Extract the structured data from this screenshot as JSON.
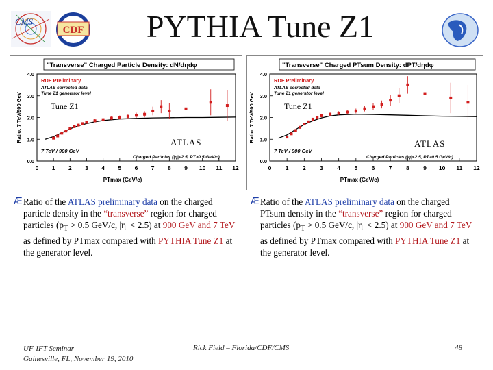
{
  "header": {
    "title": "PYTHIA Tune Z1",
    "logos": [
      "cms-logo",
      "cdf-logo",
      "florida-logo"
    ],
    "cms_text": "CMS",
    "cdf_text": "CDF"
  },
  "plots": [
    {
      "frame_title": "\"Transverse\" Charged Particle Density: dN/dηdφ",
      "tune_label": "Tune Z1",
      "atlas_label": "ATLAS",
      "legend_lines": [
        "RDF Preliminary",
        "ATLAS corrected data",
        "Tune Z1 generator level"
      ],
      "energy_label": "7 TeV / 900 GeV",
      "cut_label": "Charged Particles (|η|<2.5, PT>0.5 GeV/c)",
      "xlabel": "PTmax (GeV/c)",
      "ylabel": "Ratio: 7 TeV/900 GeV"
    },
    {
      "frame_title": "\"Transverse\" Charged PTsum Density: dPT/dηdφ",
      "tune_label": "Tune Z1",
      "atlas_label": "ATLAS",
      "legend_lines": [
        "RDF Preliminary",
        "ATLAS corrected data",
        "Tune Z1 generator level"
      ],
      "energy_label": "7 TeV / 900 GeV",
      "cut_label": "Charged Particles (|η|<2.5, PT>0.5 GeV/c)",
      "xlabel": "PTmax (GeV/c)",
      "ylabel": "Ratio: 7 TeV/900 GeV"
    }
  ],
  "chart_data": [
    {
      "type": "scatter",
      "title": "\"Transverse\" Charged Particle Density: dN/dηdφ",
      "xlabel": "PTmax (GeV/c)",
      "ylabel": "Ratio: 7 TeV/900 GeV",
      "xlim": [
        0,
        12
      ],
      "ylim": [
        0,
        4
      ],
      "xticks": [
        "0",
        "1",
        "2",
        "3",
        "4",
        "5",
        "6",
        "7",
        "8",
        "9",
        "10",
        "11",
        "12"
      ],
      "yticks": [
        "0.0",
        "1.0",
        "2.0",
        "3.0",
        "4.0"
      ],
      "series": [
        {
          "name": "ATLAS corrected data",
          "x": [
            1.0,
            1.25,
            1.5,
            1.75,
            2.0,
            2.25,
            2.5,
            2.75,
            3.0,
            3.5,
            4.0,
            4.5,
            5.0,
            5.5,
            6.0,
            6.5,
            7.0,
            7.5,
            8.0,
            9.0,
            10.5,
            11.5
          ],
          "y": [
            1.05,
            1.15,
            1.28,
            1.38,
            1.5,
            1.58,
            1.65,
            1.72,
            1.78,
            1.85,
            1.9,
            1.97,
            2.0,
            2.05,
            2.1,
            2.15,
            2.3,
            2.5,
            2.3,
            2.4,
            2.7,
            2.55
          ],
          "err": [
            0.05,
            0.05,
            0.05,
            0.05,
            0.05,
            0.06,
            0.06,
            0.06,
            0.06,
            0.07,
            0.08,
            0.08,
            0.09,
            0.1,
            0.12,
            0.14,
            0.2,
            0.3,
            0.35,
            0.4,
            0.6,
            0.7
          ]
        },
        {
          "name": "Tune Z1 generator level",
          "x": [
            0.5,
            1.0,
            1.5,
            2.0,
            2.5,
            3.0,
            3.5,
            4.0,
            5.0,
            6.0,
            7.0,
            8.0,
            9.0,
            10.0,
            11.0,
            12.0
          ],
          "y": [
            1.0,
            1.12,
            1.3,
            1.48,
            1.62,
            1.72,
            1.8,
            1.86,
            1.93,
            1.96,
            1.98,
            1.99,
            2.0,
            2.0,
            2.01,
            2.02
          ]
        }
      ]
    },
    {
      "type": "scatter",
      "title": "\"Transverse\" Charged PTsum Density: dPT/dηdφ",
      "xlabel": "PTmax (GeV/c)",
      "ylabel": "Ratio: 7 TeV/900 GeV",
      "xlim": [
        0,
        12
      ],
      "ylim": [
        0,
        4
      ],
      "xticks": [
        "0",
        "1",
        "2",
        "3",
        "4",
        "5",
        "6",
        "7",
        "8",
        "9",
        "10",
        "11",
        "12"
      ],
      "yticks": [
        "0.0",
        "1.0",
        "2.0",
        "3.0",
        "4.0"
      ],
      "series": [
        {
          "name": "ATLAS corrected data",
          "x": [
            1.0,
            1.25,
            1.5,
            1.75,
            2.0,
            2.25,
            2.5,
            2.75,
            3.0,
            3.5,
            4.0,
            4.5,
            5.0,
            5.5,
            6.0,
            6.5,
            7.0,
            7.5,
            8.0,
            9.0,
            10.5,
            11.5
          ],
          "y": [
            1.1,
            1.25,
            1.4,
            1.55,
            1.7,
            1.8,
            1.92,
            2.0,
            2.08,
            2.15,
            2.2,
            2.25,
            2.3,
            2.4,
            2.5,
            2.6,
            2.8,
            3.0,
            3.5,
            3.1,
            2.9,
            2.7
          ],
          "err": [
            0.05,
            0.05,
            0.05,
            0.06,
            0.06,
            0.06,
            0.07,
            0.07,
            0.07,
            0.08,
            0.09,
            0.1,
            0.11,
            0.12,
            0.15,
            0.18,
            0.25,
            0.35,
            0.4,
            0.5,
            0.7,
            0.8
          ]
        },
        {
          "name": "Tune Z1 generator level",
          "x": [
            0.5,
            1.0,
            1.5,
            2.0,
            2.5,
            3.0,
            3.5,
            4.0,
            5.0,
            6.0,
            7.0,
            8.0,
            9.0,
            10.0,
            11.0,
            12.0
          ],
          "y": [
            1.05,
            1.2,
            1.45,
            1.68,
            1.85,
            1.98,
            2.07,
            2.12,
            2.15,
            2.14,
            2.12,
            2.1,
            2.08,
            2.06,
            2.05,
            2.04
          ]
        }
      ]
    }
  ],
  "bullets": [
    {
      "arrow": "Æ",
      "p1": "Ratio of the ",
      "atlas_pre": "ATLAS preliminary data",
      "p2": " on the charged particle density in the ",
      "transverse": "“transverse”",
      "p3": " region for charged particles (p",
      "sub": "T",
      "p4": " > 0.5 GeV/c, |",
      "eta": "η",
      "p5": "| < 2.5) at ",
      "e900": "900 GeV and 7 TeV",
      "p6": " as defined by PTmax compared with ",
      "tune": "PYTHIA Tune Z1",
      "p7": " at the generator level."
    },
    {
      "arrow": "Æ",
      "p1": "Ratio of the ",
      "atlas_pre": "ATLAS preliminary data",
      "p2": " on the charged PTsum density in the ",
      "transverse": "“transverse”",
      "p3": " region for charged particles (p",
      "sub": "T",
      "p4": " > 0.5 GeV/c, |",
      "eta": "η",
      "p5": "| < 2.5) at ",
      "e900": "900 GeV and 7 TeV",
      "p6": " as defined by PTmax compared with ",
      "tune": "PYTHIA Tune Z1",
      "p7": " at the generator level."
    }
  ],
  "footer": {
    "left_line1": "UF-IFT Seminar",
    "left_line2": "Gainesville, FL,  November 19, 2010",
    "center": "Rick Field – Florida/CDF/CMS",
    "page": "48"
  },
  "colors": {
    "data_red": "#d21e1e",
    "line_black": "#000000",
    "text_blue": "#1f3fa8",
    "text_red": "#b3181d"
  }
}
